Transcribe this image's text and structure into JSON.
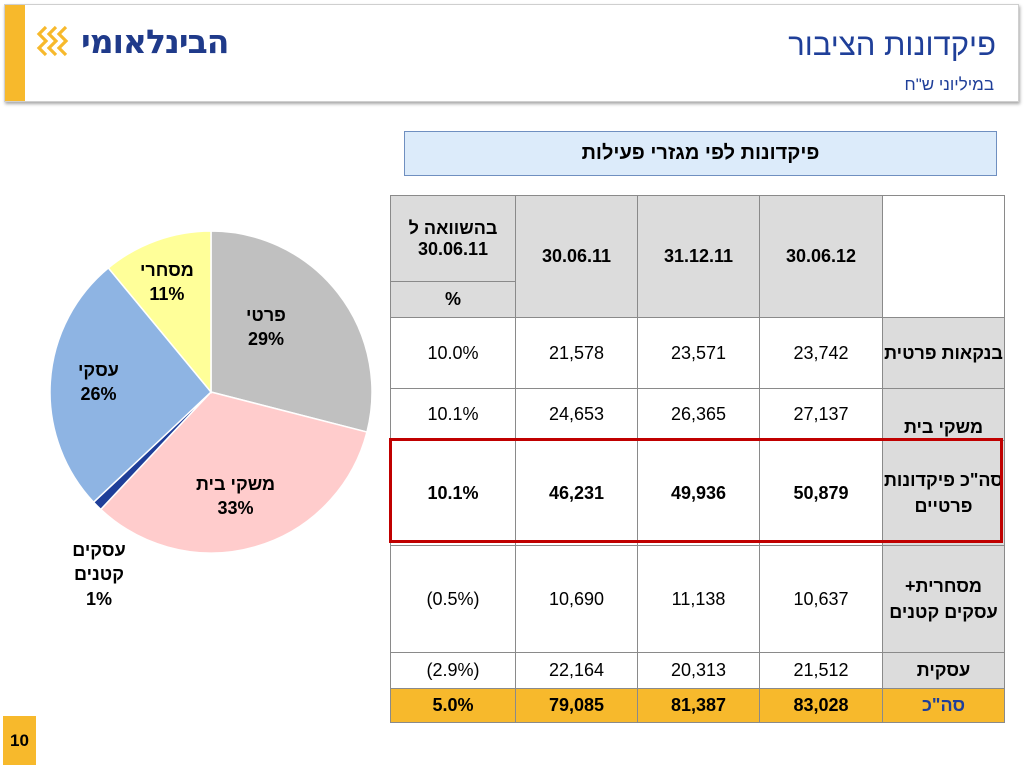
{
  "header": {
    "logo_text": "הבינלאומי",
    "title": "פיקדונות הציבור",
    "subtitle": "במיליוני ש\"ח"
  },
  "section_title": "פיקדונות לפי מגזרי פעילות",
  "page_number": "10",
  "colors": {
    "accent": "#f7b92c",
    "title_blue": "#1f3f99",
    "highlight_red": "#c00000",
    "header_gray": "#dcdcdc"
  },
  "chart_data": [
    {
      "type": "pie",
      "title": "",
      "slices": [
        {
          "label": "פרטי",
          "value": 29,
          "display": "29%",
          "color": "#c0c0c0"
        },
        {
          "label": "משקי בית",
          "value": 33,
          "display": "33%",
          "color": "#ffcccc"
        },
        {
          "label": "עסקים קטנים",
          "value": 1,
          "display": "1%",
          "color": "#1f3f99"
        },
        {
          "label": "עסקי",
          "value": 26,
          "display": "26%",
          "color": "#8eb4e3"
        },
        {
          "label": "מסחרי",
          "value": 11,
          "display": "11%",
          "color": "#ffff99"
        }
      ]
    },
    {
      "type": "table",
      "headers": {
        "col_1": "30.06.12",
        "col_2": "31.12.11",
        "col_3": "30.06.11",
        "compare_top": "בהשוואה ל 30.06.11",
        "compare_unit": "%"
      },
      "rows": [
        {
          "label": "בנקאות פרטית",
          "v1": "23,742",
          "v2": "23,571",
          "v3": "21,578",
          "change": "10.0%"
        },
        {
          "label": "משקי בית",
          "v1": "27,137",
          "v2": "26,365",
          "v3": "24,653",
          "change": "10.1%"
        },
        {
          "label": "סה\"כ פיקדונות פרטיים",
          "v1": "50,879",
          "v2": "49,936",
          "v3": "46,231",
          "change": "10.1%"
        },
        {
          "label": "מסחרית+ עסקים קטנים",
          "v1": "10,637",
          "v2": "11,138",
          "v3": "10,690",
          "change": "(0.5%)"
        },
        {
          "label": "עסקית",
          "v1": "21,512",
          "v2": "20,313",
          "v3": "22,164",
          "change": "(2.9%)"
        },
        {
          "label": "סה\"כ",
          "v1": "83,028",
          "v2": "81,387",
          "v3": "79,085",
          "change": "5.0%"
        }
      ]
    }
  ]
}
